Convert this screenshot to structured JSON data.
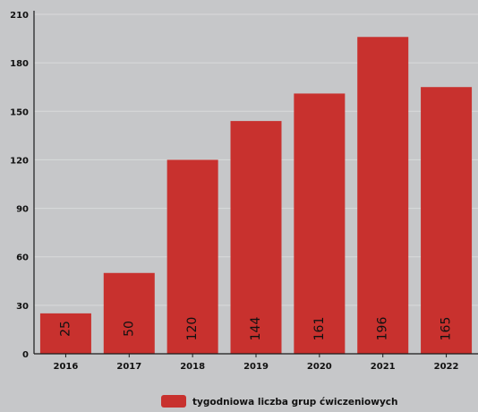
{
  "chart_data": {
    "type": "bar",
    "title": "",
    "xlabel": "",
    "ylabel": "",
    "categories": [
      "2016",
      "2017",
      "2018",
      "2019",
      "2020",
      "2021",
      "2022"
    ],
    "series": [
      {
        "name": "tygodniowa liczba grup ćwiczeniowych",
        "values": [
          25,
          50,
          120,
          144,
          161,
          196,
          165
        ],
        "color": "#c8312e"
      }
    ],
    "data_labels": [
      "25",
      "50",
      "120",
      "144",
      "161",
      "196",
      "165"
    ],
    "ylim": [
      0,
      210
    ],
    "yticks": [
      0,
      30,
      60,
      90,
      120,
      150,
      180,
      210
    ],
    "ytick_labels": [
      "0",
      "30",
      "60",
      "90",
      "120",
      "150",
      "180",
      "210"
    ],
    "grid": true,
    "legend_position": "bottom-center",
    "colors": {
      "background": "#c6c7c9",
      "bar": "#c8312e",
      "grid": "#d9dadb",
      "axis": "#1a1a1a",
      "text": "#111111"
    }
  }
}
